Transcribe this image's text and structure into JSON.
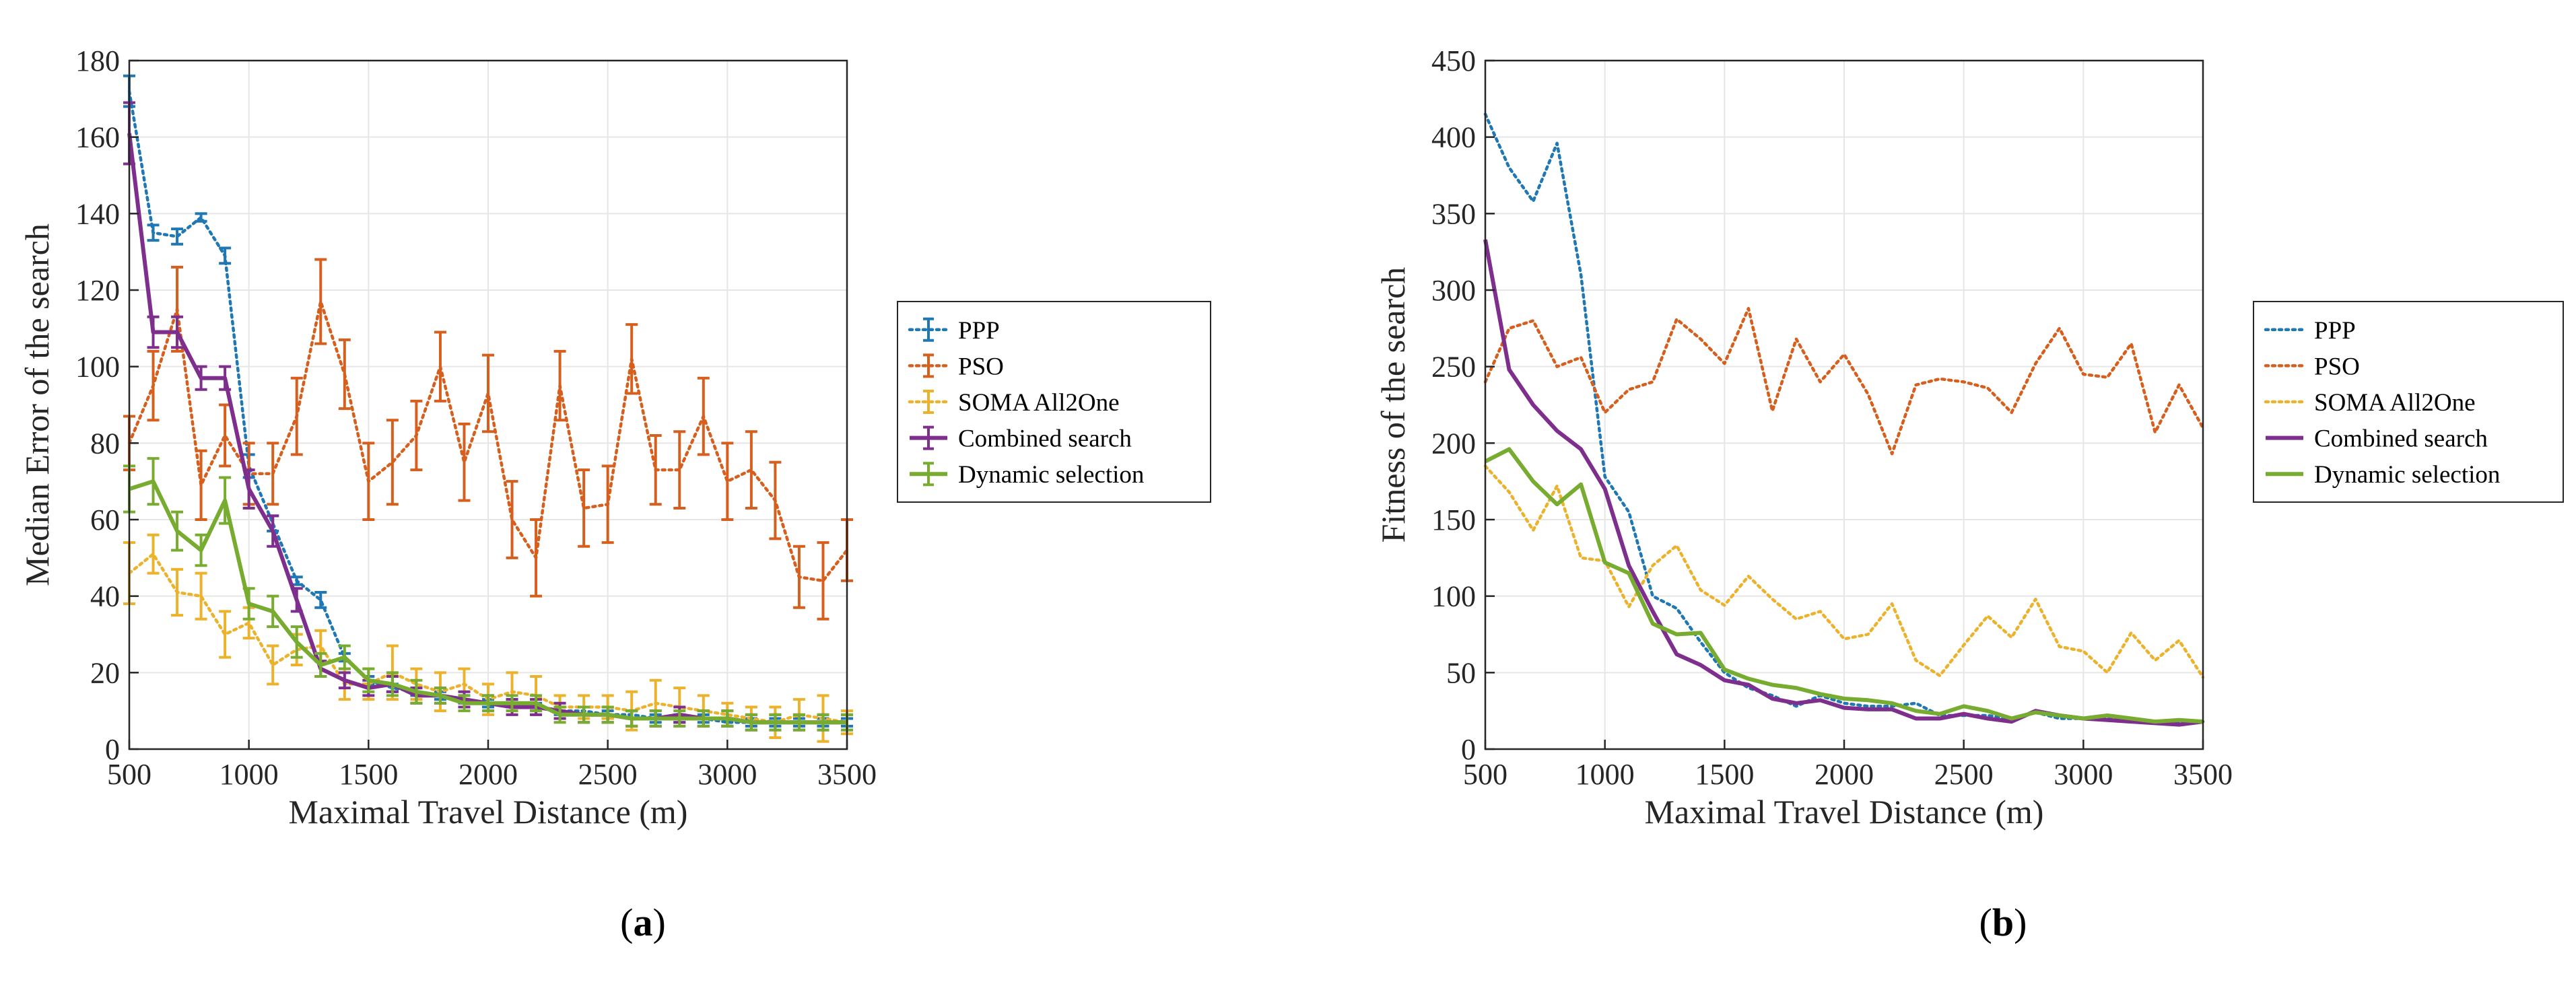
{
  "colors": {
    "PPP": "#1f77b4",
    "PSO": "#d65f1e",
    "SOMA": "#ecb22c",
    "Combined": "#7e2f8e",
    "Dynamic": "#77ac30",
    "grid": "#e6e6e6",
    "axis": "#262626"
  },
  "panels": [
    {
      "label_prefix": "(",
      "label_letter": "a",
      "label_suffix": ")"
    },
    {
      "label_prefix": "(",
      "label_letter": "b",
      "label_suffix": ")"
    }
  ],
  "chart_data": [
    {
      "type": "line",
      "error_bars": true,
      "title": "",
      "xlabel": "Maximal Travel Distance (m)",
      "ylabel": "Median Error of the search",
      "xlim": [
        500,
        3500
      ],
      "ylim": [
        0,
        180
      ],
      "xticks": [
        500,
        1000,
        1500,
        2000,
        2500,
        3000,
        3500
      ],
      "yticks": [
        0,
        20,
        40,
        60,
        80,
        100,
        120,
        140,
        160,
        180
      ],
      "x": [
        500,
        600,
        700,
        800,
        900,
        1000,
        1100,
        1200,
        1300,
        1400,
        1500,
        1600,
        1700,
        1800,
        1900,
        2000,
        2100,
        2200,
        2300,
        2400,
        2500,
        2600,
        2700,
        2800,
        2900,
        3000,
        3100,
        3200,
        3300,
        3400,
        3500
      ],
      "series": [
        {
          "name": "PPP",
          "style": "dotted",
          "values": [
            172,
            135,
            134,
            139,
            129,
            74,
            59,
            44,
            39,
            24,
            18,
            16,
            15,
            14,
            13,
            12,
            12,
            11,
            10,
            10,
            9,
            9,
            8,
            8,
            8,
            7,
            7,
            7,
            7,
            7,
            7
          ],
          "errors": [
            4,
            2,
            2,
            1,
            2,
            3,
            2,
            1,
            2,
            1,
            1,
            1,
            1,
            1,
            1,
            1,
            1,
            1,
            1,
            1,
            1,
            1,
            1,
            1,
            1,
            1,
            1,
            1,
            1,
            1,
            1
          ]
        },
        {
          "name": "PSO",
          "style": "dotted",
          "values": [
            80,
            95,
            115,
            69,
            82,
            72,
            72,
            87,
            117,
            98,
            70,
            75,
            82,
            100,
            75,
            93,
            60,
            50,
            95,
            63,
            64,
            102,
            73,
            73,
            87,
            70,
            73,
            65,
            45,
            44,
            52
          ],
          "errors": [
            7,
            9,
            11,
            9,
            8,
            8,
            8,
            10,
            11,
            9,
            10,
            11,
            9,
            9,
            10,
            10,
            10,
            10,
            9,
            10,
            10,
            9,
            9,
            10,
            10,
            10,
            10,
            10,
            8,
            10,
            8
          ]
        },
        {
          "name": "SOMA All2One",
          "style": "dotted",
          "values": [
            46,
            51,
            41,
            40,
            30,
            33,
            22,
            26,
            27,
            17,
            17,
            20,
            17,
            15,
            17,
            13,
            15,
            14,
            11,
            11,
            11,
            10,
            12,
            11,
            10,
            9,
            8,
            7,
            9,
            8,
            7
          ],
          "errors": [
            8,
            5,
            6,
            6,
            6,
            4,
            5,
            4,
            4,
            4,
            4,
            7,
            4,
            5,
            4,
            4,
            5,
            5,
            3,
            3,
            3,
            5,
            6,
            5,
            4,
            3,
            3,
            4,
            4,
            6,
            3
          ]
        },
        {
          "name": "Combined search",
          "style": "solid",
          "values": [
            161,
            109,
            109,
            97,
            97,
            68,
            57,
            39,
            21,
            18,
            16,
            17,
            14,
            14,
            13,
            12,
            11,
            11,
            10,
            9,
            9,
            8,
            8,
            9,
            8,
            8,
            7,
            7,
            7,
            7,
            7
          ],
          "errors": [
            8,
            4,
            4,
            3,
            3,
            5,
            4,
            3,
            2,
            2,
            2,
            2,
            2,
            2,
            2,
            2,
            2,
            2,
            2,
            2,
            2,
            2,
            2,
            2,
            2,
            2,
            2,
            2,
            2,
            2,
            2
          ]
        },
        {
          "name": "Dynamic selection",
          "style": "solid",
          "values": [
            68,
            70,
            57,
            52,
            65,
            38,
            36,
            28,
            22,
            24,
            18,
            17,
            15,
            14,
            12,
            12,
            12,
            12,
            9,
            9,
            9,
            8,
            8,
            8,
            8,
            8,
            7,
            7,
            7,
            7,
            7
          ],
          "errors": [
            6,
            6,
            5,
            4,
            6,
            4,
            4,
            4,
            3,
            3,
            3,
            3,
            3,
            2,
            2,
            2,
            2,
            2,
            2,
            2,
            2,
            2,
            2,
            2,
            2,
            2,
            2,
            2,
            2,
            2,
            2
          ]
        }
      ]
    },
    {
      "type": "line",
      "title": "",
      "xlabel": "Maximal Travel Distance (m)",
      "ylabel": "Fitness of the search",
      "xlim": [
        500,
        3500
      ],
      "ylim": [
        0,
        450
      ],
      "xticks": [
        500,
        1000,
        1500,
        2000,
        2500,
        3000,
        3500
      ],
      "yticks": [
        0,
        50,
        100,
        150,
        200,
        250,
        300,
        350,
        400,
        450
      ],
      "x": [
        500,
        600,
        700,
        800,
        900,
        1000,
        1100,
        1200,
        1300,
        1400,
        1500,
        1600,
        1700,
        1800,
        1900,
        2000,
        2100,
        2200,
        2300,
        2400,
        2500,
        2600,
        2700,
        2800,
        2900,
        3000,
        3100,
        3200,
        3300,
        3400,
        3500
      ],
      "series": [
        {
          "name": "PPP",
          "style": "dotted",
          "values": [
            415,
            380,
            358,
            396,
            310,
            178,
            155,
            100,
            92,
            70,
            50,
            40,
            35,
            28,
            35,
            30,
            28,
            28,
            30,
            22,
            22,
            22,
            20,
            24,
            20,
            20,
            20,
            18,
            17,
            17,
            18
          ]
        },
        {
          "name": "PSO",
          "style": "dotted",
          "values": [
            240,
            275,
            280,
            250,
            256,
            220,
            235,
            240,
            281,
            268,
            252,
            288,
            221,
            268,
            240,
            258,
            232,
            193,
            238,
            242,
            240,
            236,
            220,
            252,
            275,
            245,
            243,
            265,
            207,
            238,
            210
          ]
        },
        {
          "name": "SOMA All2One",
          "style": "dotted",
          "values": [
            185,
            168,
            143,
            172,
            125,
            123,
            93,
            120,
            133,
            104,
            94,
            113,
            98,
            85,
            90,
            72,
            75,
            95,
            58,
            48,
            68,
            87,
            73,
            98,
            67,
            64,
            50,
            76,
            58,
            71,
            47
          ]
        },
        {
          "name": "Combined search",
          "style": "solid",
          "values": [
            333,
            248,
            225,
            208,
            196,
            170,
            120,
            90,
            62,
            55,
            45,
            42,
            33,
            30,
            32,
            27,
            26,
            26,
            20,
            20,
            23,
            20,
            18,
            25,
            22,
            20,
            19,
            18,
            17,
            16,
            18
          ]
        },
        {
          "name": "Dynamic selection",
          "style": "solid",
          "values": [
            188,
            196,
            175,
            160,
            173,
            122,
            115,
            82,
            75,
            76,
            52,
            46,
            42,
            40,
            36,
            33,
            32,
            30,
            25,
            23,
            28,
            25,
            20,
            24,
            22,
            20,
            22,
            20,
            18,
            19,
            18
          ]
        }
      ]
    }
  ]
}
